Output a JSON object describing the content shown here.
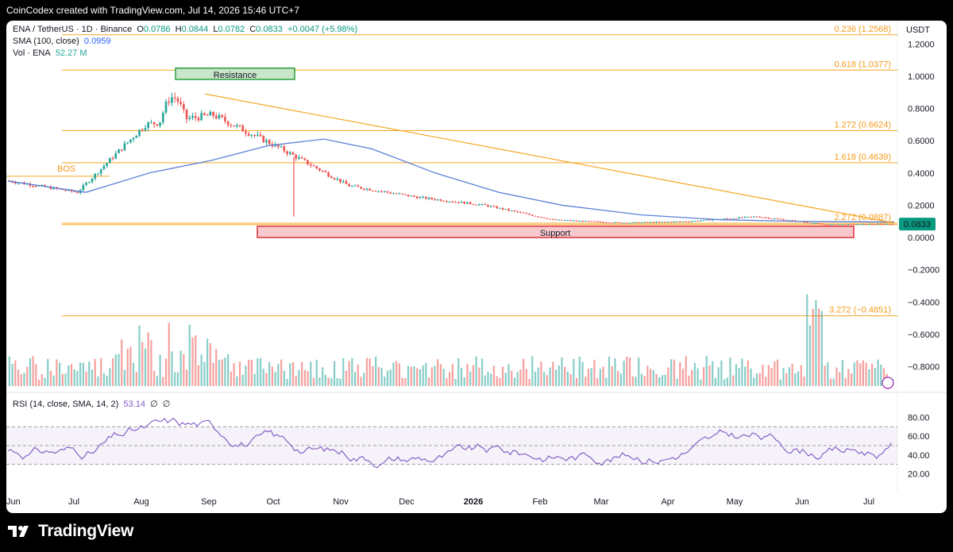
{
  "header": {
    "attribution": "CoinCodex created with TradingView.com, Jul 14, 2026 15:46 UTC+7"
  },
  "legend": {
    "symbol": "ENA / TetherUS · 1D · Binance",
    "open_label": "O",
    "open": "0.0786",
    "high_label": "H",
    "high": "0.0844",
    "low_label": "L",
    "low": "0.0782",
    "close_label": "C",
    "close": "0.0833",
    "change": "+0.0047 (+5.98%)",
    "sma_label": "SMA (100, close)",
    "sma_value": "0.0959",
    "vol_label": "Vol · ENA",
    "vol_value": "52.27 M",
    "rsi_label": "RSI (14, close, SMA, 14, 2)",
    "rsi_value": "53.14",
    "rsi_extra1": "∅",
    "rsi_extra2": "∅"
  },
  "axis": {
    "currency": "USDT",
    "price_ticks": [
      "1.2000",
      "1.0000",
      "0.8000",
      "0.6000",
      "0.4000",
      "0.2000",
      "0.0000",
      "−0.2000",
      "−0.4000",
      "−0.6000",
      "−0.8000"
    ],
    "rsi_ticks": [
      "80.00",
      "60.00",
      "40.00",
      "20.00"
    ],
    "months": [
      "Jun",
      "Jul",
      "Aug",
      "Sep",
      "Oct",
      "Nov",
      "Dec",
      "2026",
      "Feb",
      "Mar",
      "Apr",
      "May",
      "Jun",
      "Jul"
    ],
    "last_price": "0.0833"
  },
  "annotations": {
    "resistance": "Resistance",
    "support": "Support",
    "bos": "BOS",
    "fib_levels": [
      {
        "label": "0.236 (1.2568)",
        "value": 1.2568
      },
      {
        "label": "0.618 (1.0377)",
        "value": 1.0377
      },
      {
        "label": "1.272 (0.6624)",
        "value": 0.6624
      },
      {
        "label": "1.618 (0.4639)",
        "value": 0.4639
      },
      {
        "label": "2.272 (0.0887)",
        "value": 0.0887
      },
      {
        "label": "3.272 (−0.4851)",
        "value": -0.4851
      }
    ]
  },
  "colors": {
    "up": "#26a69a",
    "down": "#ef5350",
    "sma": "#5b7fd8",
    "fib": "#f5a623",
    "resistance_fill": "#c8e6c9",
    "resistance_stroke": "#2e9e3e",
    "support_fill": "#f8c9cc",
    "support_stroke": "#e0333c",
    "rsi": "#7e57c2"
  },
  "footer": {
    "brand": "TradingView"
  },
  "chart_data": {
    "type": "candlestick",
    "symbol": "ENA/USDT",
    "timeframe": "1D",
    "x_range": [
      "2025-06",
      "2026-07-14"
    ],
    "y_range": [
      -0.95,
      1.3
    ],
    "price_path": [
      {
        "month": "Jun",
        "close": 0.35
      },
      {
        "month": "Jul",
        "close": 0.28
      },
      {
        "month": "Aug",
        "close": 0.7
      },
      {
        "month": "Sep",
        "close": 0.76
      },
      {
        "month": "Oct",
        "close": 0.55
      },
      {
        "month": "Nov",
        "close": 0.32
      },
      {
        "month": "Dec",
        "close": 0.25
      },
      {
        "month": "Jan 2026",
        "close": 0.2
      },
      {
        "month": "Feb",
        "close": 0.11
      },
      {
        "month": "Mar",
        "close": 0.09
      },
      {
        "month": "Apr",
        "close": 0.1
      },
      {
        "month": "May",
        "close": 0.13
      },
      {
        "month": "Jun",
        "close": 0.08
      },
      {
        "month": "Jul",
        "close": 0.0833
      }
    ],
    "peak_value": 0.87,
    "trendline": {
      "from": 0.89,
      "to": 0.09
    },
    "sma100_end": 0.0959,
    "resistance_zone": [
      0.98,
      1.05
    ],
    "support_zone": [
      0.0,
      0.07
    ],
    "bos_level": 0.38,
    "rsi_last": 53.14,
    "rsi_bands": [
      30,
      50,
      70
    ]
  }
}
